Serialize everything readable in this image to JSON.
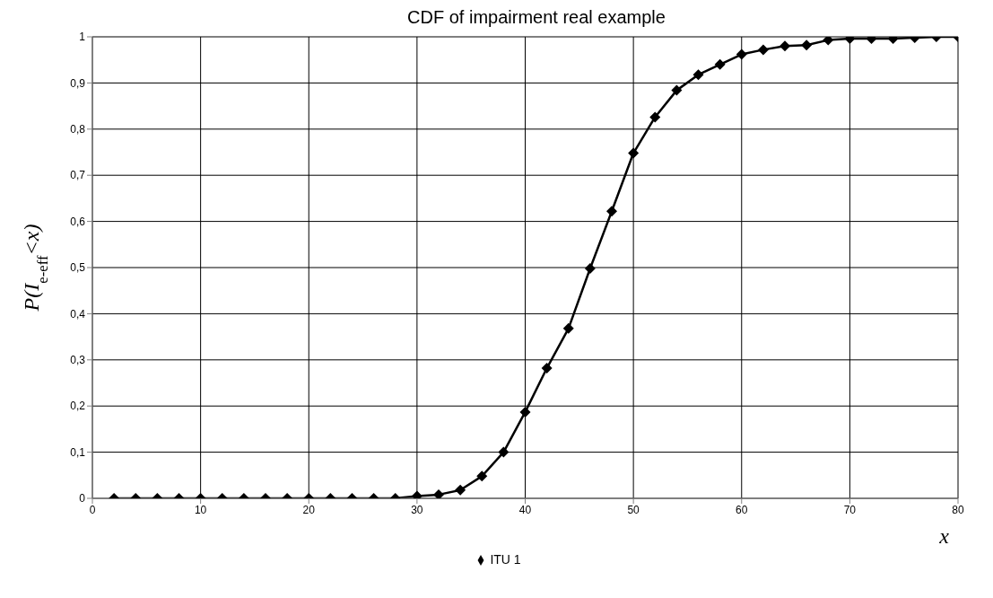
{
  "chart_data": {
    "type": "line",
    "title": "CDF of impairment real example",
    "xlabel": "x",
    "ylabel": "P(I$_{e-eff}$<x)",
    "x": [
      2,
      4,
      6,
      8,
      10,
      12,
      14,
      16,
      18,
      20,
      22,
      24,
      26,
      28,
      30,
      32,
      34,
      36,
      38,
      40,
      42,
      44,
      46,
      48,
      50,
      52,
      54,
      56,
      58,
      60,
      62,
      64,
      66,
      68,
      70,
      72,
      74,
      76,
      78,
      80
    ],
    "series": [
      {
        "name": "ITU 1",
        "color": "#000000",
        "values": [
          0,
          0,
          0,
          0,
          0,
          0,
          0,
          0,
          0,
          0,
          0,
          0,
          0,
          0,
          0.005,
          0.008,
          0.018,
          0.048,
          0.1,
          0.187,
          0.282,
          0.368,
          0.498,
          0.622,
          0.748,
          0.826,
          0.884,
          0.918,
          0.94,
          0.962,
          0.972,
          0.98,
          0.982,
          0.993,
          0.996,
          0.996,
          0.996,
          0.998,
          1,
          1
        ]
      }
    ],
    "xlim": [
      0,
      80
    ],
    "xticks": [
      0,
      10,
      20,
      30,
      40,
      50,
      60,
      70,
      80
    ],
    "ylim": [
      0,
      1
    ],
    "yticks": [
      0,
      {
        "value": 0.1,
        "label": "0,1"
      },
      {
        "value": 0.2,
        "label": "0,2"
      },
      {
        "value": 0.3,
        "label": "0,3"
      },
      {
        "value": 0.4,
        "label": "0,4"
      },
      {
        "value": 0.5,
        "label": "0,5"
      },
      {
        "value": 0.6,
        "label": "0,6"
      },
      {
        "value": 0.7,
        "label": "0,7"
      },
      {
        "value": 0.8,
        "label": "0,8"
      },
      {
        "value": 0.9,
        "label": "0,9"
      },
      1
    ],
    "grid": true,
    "legend": "bottom",
    "marker": "diamond",
    "line_style": "solid"
  }
}
